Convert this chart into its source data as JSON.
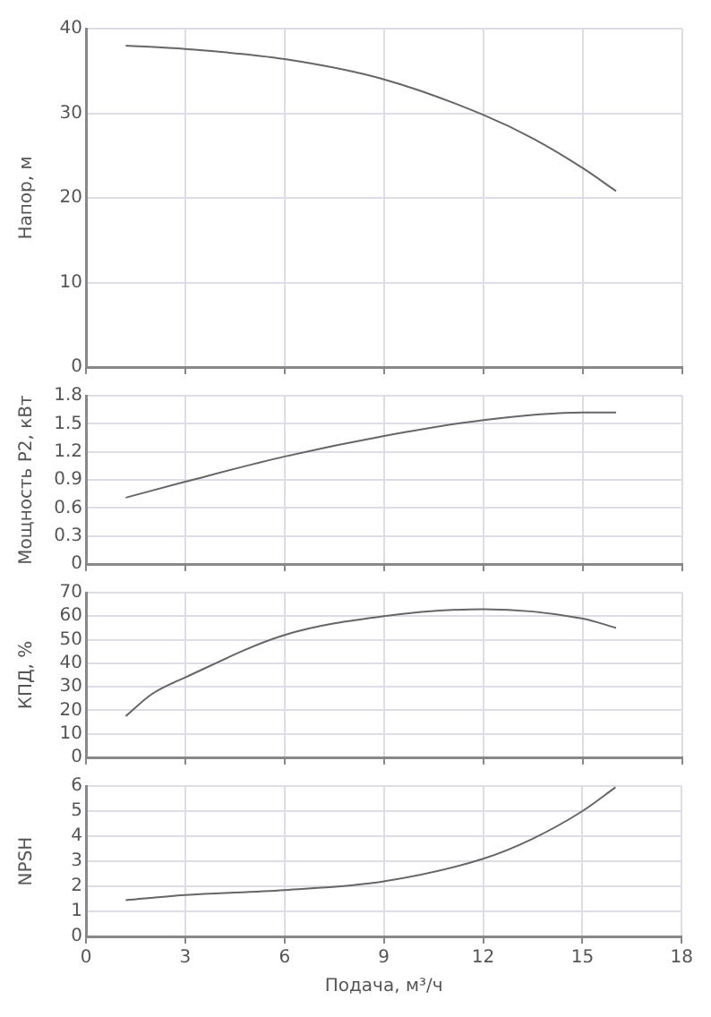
{
  "chart_data": [
    {
      "type": "line",
      "ylabel": "Напор, м",
      "x": [
        1.2,
        3,
        6,
        9,
        12,
        13.5,
        15,
        16
      ],
      "series": [
        {
          "color": "#666666",
          "values": [
            38,
            37.6,
            36.4,
            34,
            29.8,
            27,
            23.5,
            20.8
          ]
        }
      ],
      "xlim": [
        0,
        18
      ],
      "xticks": [
        0,
        3,
        6,
        9,
        12,
        15,
        18
      ],
      "ylim": [
        0,
        40
      ],
      "yticks": [
        0,
        10,
        20,
        30,
        40
      ],
      "grid": true,
      "tick_labels": "y"
    },
    {
      "type": "line",
      "ylabel": "Мощность P2, кВт",
      "x": [
        1.2,
        3,
        6,
        9,
        12,
        15,
        16
      ],
      "series": [
        {
          "color": "#666666",
          "values": [
            0.71,
            0.88,
            1.15,
            1.37,
            1.54,
            1.62,
            1.62
          ]
        }
      ],
      "xlim": [
        0,
        18
      ],
      "xticks": [
        0,
        3,
        6,
        9,
        12,
        15,
        18
      ],
      "ylim": [
        0,
        1.8
      ],
      "yticks": [
        0,
        0.3,
        0.6,
        0.9,
        1.2,
        1.5,
        1.8
      ],
      "grid": true,
      "tick_labels": "y"
    },
    {
      "type": "line",
      "ylabel": "КПД, %",
      "x": [
        1.2,
        2,
        3,
        6,
        9,
        12,
        15,
        16
      ],
      "series": [
        {
          "color": "#666666",
          "values": [
            17.5,
            27,
            34,
            52,
            60,
            63,
            59,
            55
          ]
        }
      ],
      "xlim": [
        0,
        18
      ],
      "xticks": [
        0,
        3,
        6,
        9,
        12,
        15,
        18
      ],
      "ylim": [
        0,
        70
      ],
      "yticks": [
        0,
        10,
        20,
        30,
        40,
        50,
        60,
        70
      ],
      "grid": true,
      "tick_labels": "y"
    },
    {
      "type": "line",
      "ylabel": "NPSH",
      "xlabel": "Подача, м³/ч",
      "x": [
        1.2,
        3,
        6,
        9,
        12,
        13.5,
        15,
        16
      ],
      "series": [
        {
          "color": "#666666",
          "values": [
            1.45,
            1.65,
            1.85,
            2.2,
            3.1,
            3.9,
            5,
            5.95
          ]
        }
      ],
      "xlim": [
        0,
        18
      ],
      "xticks": [
        0,
        3,
        6,
        9,
        12,
        15,
        18
      ],
      "ylim": [
        0,
        6
      ],
      "yticks": [
        0,
        1,
        2,
        3,
        4,
        5,
        6
      ],
      "grid": true
    }
  ]
}
